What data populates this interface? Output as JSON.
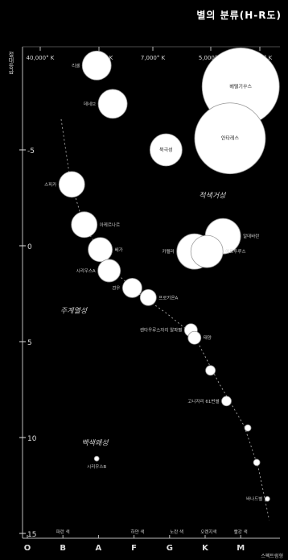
{
  "header": {
    "title": "별의 분류(H-R도)"
  },
  "chart_data": {
    "type": "scatter",
    "title": "별의 분류(H-R도)",
    "ylabel": "절대등급",
    "xlabel": "스펙트럼형",
    "ylim": [
      15,
      -13
    ],
    "temperature_ticks": [
      "40,000° K",
      "10,000° K",
      "7,000° K",
      "5,000° K",
      "3,000° K"
    ],
    "y_ticks": [
      "-5",
      "0",
      "5",
      "10",
      "15"
    ],
    "spectral_classes": [
      "O",
      "B",
      "A",
      "F",
      "G",
      "K",
      "M"
    ],
    "class_colors": [
      "파란 색",
      "하얀 색",
      "노란 색",
      "오렌지색",
      "빨강 색"
    ],
    "region_labels": [
      "주계열성",
      "적색거성",
      "백색왜성"
    ],
    "stars": [
      {
        "name": "리겔",
        "class": 1.95,
        "mag": -9.4,
        "size": 18,
        "label_side": "left"
      },
      {
        "name": "데네브",
        "class": 2.4,
        "mag": -7.4,
        "size": 18,
        "label_side": "left"
      },
      {
        "name": "북극성",
        "class": 3.9,
        "mag": -5.0,
        "size": 20,
        "label_side": "center"
      },
      {
        "name": "베텔기우스",
        "class": 6.0,
        "mag": -8.3,
        "size": 48,
        "label_side": "center"
      },
      {
        "name": "안타레스",
        "class": 5.7,
        "mag": -5.6,
        "size": 44,
        "label_side": "center"
      },
      {
        "name": "스피카",
        "class": 1.25,
        "mag": -3.2,
        "size": 16,
        "label_side": "left"
      },
      {
        "name": "아케르나르",
        "class": 1.6,
        "mag": -1.1,
        "size": 16,
        "label_side": "right"
      },
      {
        "name": "베가",
        "class": 2.05,
        "mag": 0.2,
        "size": 15,
        "label_side": "right"
      },
      {
        "name": "시리우스A",
        "class": 2.3,
        "mag": 1.3,
        "size": 14,
        "label_side": "left"
      },
      {
        "name": "알데바란",
        "class": 5.5,
        "mag": -0.5,
        "size": 22,
        "label_side": "right"
      },
      {
        "name": "카펠라",
        "class": 4.7,
        "mag": 0.3,
        "size": 22,
        "label_side": "left"
      },
      {
        "name": "아르투루스",
        "class": 5.05,
        "mag": 0.3,
        "size": 20,
        "label_side": "right"
      },
      {
        "name": "견우",
        "class": 2.95,
        "mag": 2.2,
        "size": 12,
        "label_side": "left"
      },
      {
        "name": "프로키온A",
        "class": 3.4,
        "mag": 2.7,
        "size": 10,
        "label_side": "right"
      },
      {
        "name": "켄타우루스자리 알파별",
        "class": 4.6,
        "mag": 4.4,
        "size": 8,
        "label_side": "left"
      },
      {
        "name": "태양",
        "class": 4.7,
        "mag": 4.8,
        "size": 8,
        "label_side": "right"
      },
      {
        "name": "",
        "class": 5.15,
        "mag": 6.5,
        "size": 6,
        "label_side": "none"
      },
      {
        "name": "고니자리 61번별",
        "class": 5.6,
        "mag": 8.1,
        "size": 6,
        "label_side": "left"
      },
      {
        "name": "",
        "class": 6.2,
        "mag": 9.5,
        "size": 4,
        "label_side": "none"
      },
      {
        "name": "",
        "class": 6.45,
        "mag": 11.3,
        "size": 4,
        "label_side": "none"
      },
      {
        "name": "바나드별",
        "class": 6.75,
        "mag": 13.2,
        "size": 3,
        "label_side": "left"
      },
      {
        "name": "시리우스B",
        "class": 1.95,
        "mag": 11.1,
        "size": 3,
        "label_side": "below"
      }
    ]
  }
}
